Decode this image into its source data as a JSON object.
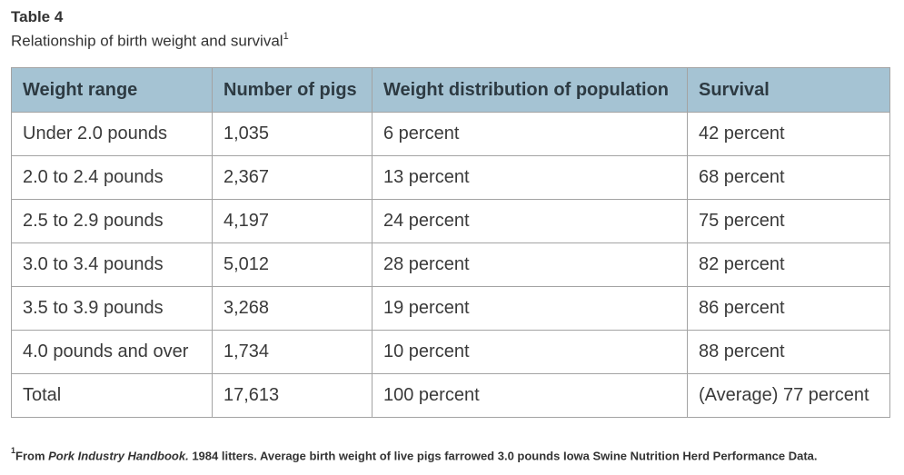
{
  "caption": {
    "title": "Table 4",
    "subtitle": "Relationship of birth weight and survival",
    "subtitle_sup": "1"
  },
  "table": {
    "headers": [
      "Weight range",
      "Number of pigs",
      "Weight distribution of population",
      "Survival"
    ],
    "rows": [
      [
        "Under 2.0 pounds",
        "1,035",
        "6 percent",
        "42 percent"
      ],
      [
        "2.0 to 2.4 pounds",
        "2,367",
        "13 percent",
        "68 percent"
      ],
      [
        "2.5 to 2.9 pounds",
        "4,197",
        "24 percent",
        "75 percent"
      ],
      [
        "3.0 to 3.4 pounds",
        "5,012",
        "28 percent",
        "82 percent"
      ],
      [
        "3.5 to 3.9 pounds",
        "3,268",
        "19 percent",
        "86 percent"
      ],
      [
        "4.0 pounds and over",
        "1,734",
        "10 percent",
        "88 percent"
      ],
      [
        "Total",
        "17,613",
        "100 percent",
        "(Average) 77 percent"
      ]
    ]
  },
  "footnote": {
    "sup": "1",
    "prefix": "From ",
    "source_title": "Pork Industry Handbook.",
    "text": " 1984 litters. Average birth weight of live pigs farrowed 3.0 pounds Iowa Swine Nutrition Herd Performance Data."
  },
  "colors": {
    "header_bg": "#a5c3d3",
    "border": "#a3a3a3",
    "text": "#333333"
  }
}
